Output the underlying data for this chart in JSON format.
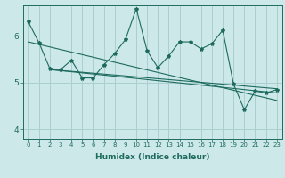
{
  "xlabel": "Humidex (Indice chaleur)",
  "xlim": [
    -0.5,
    23.5
  ],
  "ylim": [
    3.8,
    6.65
  ],
  "yticks": [
    4,
    5,
    6
  ],
  "xticks": [
    0,
    1,
    2,
    3,
    4,
    5,
    6,
    7,
    8,
    9,
    10,
    11,
    12,
    13,
    14,
    15,
    16,
    17,
    18,
    19,
    20,
    21,
    22,
    23
  ],
  "bg_color": "#cce8e8",
  "grid_color": "#aacfcf",
  "line_color": "#1e6b5e",
  "line1_y": [
    6.3,
    5.85,
    5.3,
    5.28,
    5.48,
    5.1,
    5.1,
    5.38,
    5.62,
    5.92,
    6.58,
    5.68,
    5.32,
    5.57,
    5.87,
    5.87,
    5.72,
    5.83,
    6.12,
    4.97,
    4.42,
    4.82,
    4.78,
    4.85
  ],
  "trend1_x": [
    0,
    23
  ],
  "trend1_y": [
    5.87,
    4.62
  ],
  "trend2_x": [
    2,
    23
  ],
  "trend2_y": [
    5.28,
    4.78
  ],
  "trend3_x": [
    2,
    23
  ],
  "trend3_y": [
    5.28,
    4.87
  ]
}
